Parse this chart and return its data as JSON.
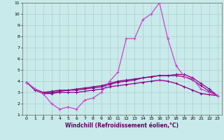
{
  "xlabel": "Windchill (Refroidissement éolien,°C)",
  "ylabel": "",
  "xlim": [
    -0.5,
    23.5
  ],
  "ylim": [
    1,
    11
  ],
  "yticks": [
    1,
    2,
    3,
    4,
    5,
    6,
    7,
    8,
    9,
    10,
    11
  ],
  "xticks": [
    0,
    1,
    2,
    3,
    4,
    5,
    6,
    7,
    8,
    9,
    10,
    11,
    12,
    13,
    14,
    15,
    16,
    17,
    18,
    19,
    20,
    21,
    22,
    23
  ],
  "background_color": "#c8eaea",
  "grid_color": "#b0cccc",
  "line_color": "#880088",
  "line_color2": "#cc44cc",
  "hours": [
    0,
    1,
    2,
    3,
    4,
    5,
    6,
    7,
    8,
    9,
    10,
    11,
    12,
    13,
    14,
    15,
    16,
    17,
    18,
    19,
    20,
    21,
    22,
    23
  ],
  "line1": [
    3.9,
    3.3,
    2.9,
    2.0,
    1.5,
    1.7,
    1.5,
    2.3,
    2.5,
    3.0,
    4.0,
    4.8,
    7.8,
    7.8,
    9.5,
    10.0,
    11.0,
    7.8,
    5.4,
    4.4,
    4.2,
    3.3,
    3.0,
    2.7
  ],
  "line2": [
    3.9,
    3.3,
    2.9,
    3.0,
    3.1,
    3.2,
    3.2,
    3.3,
    3.4,
    3.5,
    3.7,
    3.9,
    4.0,
    4.1,
    4.3,
    4.4,
    4.5,
    4.5,
    4.6,
    4.6,
    4.3,
    3.8,
    3.3,
    2.7
  ],
  "line3": [
    3.9,
    3.3,
    3.0,
    3.1,
    3.2,
    3.2,
    3.3,
    3.4,
    3.5,
    3.6,
    3.8,
    4.0,
    4.1,
    4.2,
    4.3,
    4.4,
    4.5,
    4.5,
    4.5,
    4.4,
    4.1,
    3.6,
    3.1,
    2.7
  ],
  "line4": [
    3.9,
    3.2,
    2.9,
    2.9,
    3.0,
    3.0,
    3.0,
    3.1,
    3.2,
    3.3,
    3.5,
    3.6,
    3.7,
    3.8,
    3.9,
    4.0,
    4.1,
    4.0,
    3.8,
    3.5,
    3.2,
    2.9,
    2.8,
    2.7
  ],
  "xlabel_color": "#660066",
  "xlabel_fontsize": 5.5,
  "tick_fontsize": 4.5,
  "marker_size": 3
}
